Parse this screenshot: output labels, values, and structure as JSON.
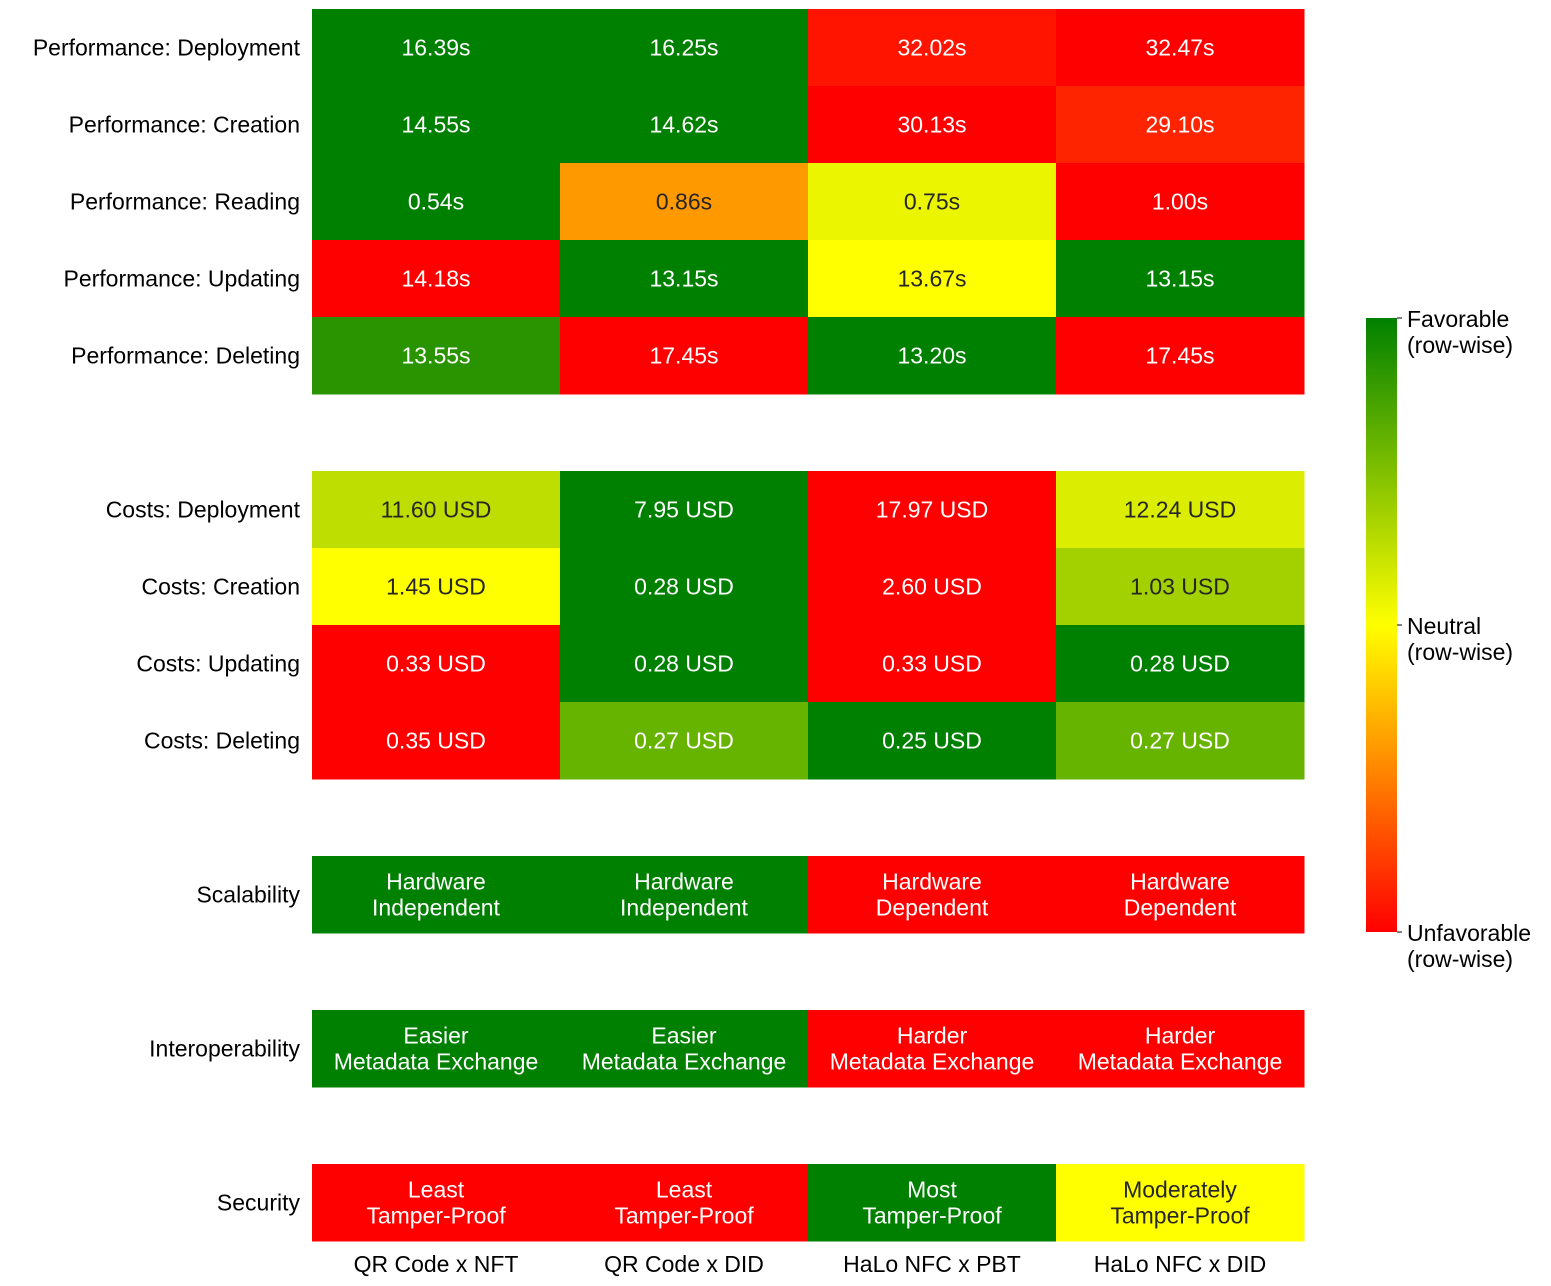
{
  "chart_data": {
    "type": "heatmap",
    "columns": [
      "QR Code x NFT",
      "QR Code x DID",
      "HaLo NFC x PBT",
      "HaLo NFC x DID"
    ],
    "rows": [
      {
        "label": "Performance: Deployment",
        "group": 0,
        "cells": [
          {
            "text": "16.39s",
            "score": 1.0
          },
          {
            "text": "16.25s",
            "score": 1.0
          },
          {
            "text": "32.02s",
            "score": 0.04
          },
          {
            "text": "32.47s",
            "score": 0.0
          }
        ]
      },
      {
        "label": "Performance: Creation",
        "group": 0,
        "cells": [
          {
            "text": "14.55s",
            "score": 1.0
          },
          {
            "text": "14.62s",
            "score": 1.0
          },
          {
            "text": "30.13s",
            "score": 0.0
          },
          {
            "text": "29.10s",
            "score": 0.07
          }
        ]
      },
      {
        "label": "Performance: Reading",
        "group": 0,
        "cells": [
          {
            "text": "0.54s",
            "score": 1.0
          },
          {
            "text": "0.86s",
            "score": 0.3
          },
          {
            "text": "0.75s",
            "score": 0.54
          },
          {
            "text": "1.00s",
            "score": 0.0
          }
        ]
      },
      {
        "label": "Performance: Updating",
        "group": 0,
        "cells": [
          {
            "text": "14.18s",
            "score": 0.0
          },
          {
            "text": "13.15s",
            "score": 1.0
          },
          {
            "text": "13.67s",
            "score": 0.5
          },
          {
            "text": "13.15s",
            "score": 1.0
          }
        ]
      },
      {
        "label": "Performance: Deleting",
        "group": 0,
        "cells": [
          {
            "text": "13.55s",
            "score": 0.92
          },
          {
            "text": "17.45s",
            "score": 0.0
          },
          {
            "text": "13.20s",
            "score": 1.0
          },
          {
            "text": "17.45s",
            "score": 0.0
          }
        ]
      },
      {
        "label": "Costs: Deployment",
        "group": 1,
        "cells": [
          {
            "text": "11.60 USD",
            "score": 0.63
          },
          {
            "text": "7.95 USD",
            "score": 1.0
          },
          {
            "text": "17.97 USD",
            "score": 0.0
          },
          {
            "text": "12.24 USD",
            "score": 0.57
          }
        ]
      },
      {
        "label": "Costs: Creation",
        "group": 1,
        "cells": [
          {
            "text": "1.45 USD",
            "score": 0.5
          },
          {
            "text": "0.28 USD",
            "score": 1.0
          },
          {
            "text": "2.60 USD",
            "score": 0.0
          },
          {
            "text": "1.03 USD",
            "score": 0.68
          }
        ]
      },
      {
        "label": "Costs: Updating",
        "group": 1,
        "cells": [
          {
            "text": "0.33 USD",
            "score": 0.0
          },
          {
            "text": "0.28 USD",
            "score": 1.0
          },
          {
            "text": "0.33 USD",
            "score": 0.0
          },
          {
            "text": "0.28 USD",
            "score": 1.0
          }
        ]
      },
      {
        "label": "Costs: Deleting",
        "group": 1,
        "cells": [
          {
            "text": "0.35 USD",
            "score": 0.0
          },
          {
            "text": "0.27 USD",
            "score": 0.8
          },
          {
            "text": "0.25 USD",
            "score": 1.0
          },
          {
            "text": "0.27 USD",
            "score": 0.8
          }
        ]
      },
      {
        "label": "Scalability",
        "group": 2,
        "cells": [
          {
            "text": "Hardware\nIndependent",
            "score": 1.0
          },
          {
            "text": "Hardware\nIndependent",
            "score": 1.0
          },
          {
            "text": "Hardware\nDependent",
            "score": 0.0
          },
          {
            "text": "Hardware\nDependent",
            "score": 0.0
          }
        ]
      },
      {
        "label": "Interoperability",
        "group": 3,
        "cells": [
          {
            "text": "Easier\nMetadata Exchange",
            "score": 1.0
          },
          {
            "text": "Easier\nMetadata Exchange",
            "score": 1.0
          },
          {
            "text": "Harder\nMetadata Exchange",
            "score": 0.0
          },
          {
            "text": "Harder\nMetadata Exchange",
            "score": 0.0
          }
        ]
      },
      {
        "label": "Security",
        "group": 4,
        "cells": [
          {
            "text": "Least\nTamper-Proof",
            "score": 0.0
          },
          {
            "text": "Least\nTamper-Proof",
            "score": 0.0
          },
          {
            "text": "Most\nTamper-Proof",
            "score": 1.0
          },
          {
            "text": "Moderately\nTamper-Proof",
            "score": 0.5
          }
        ]
      }
    ],
    "colorbar": {
      "ticks": [
        {
          "value": 1.0,
          "label": "Favorable\n(row-wise)"
        },
        {
          "value": 0.5,
          "label": "Neutral\n(row-wise)"
        },
        {
          "value": 0.0,
          "label": "Unfavorable\n(row-wise)"
        }
      ],
      "colors": {
        "unfavorable": "#ff0000",
        "neutral": "#ffff00",
        "favorable": "#008000"
      }
    },
    "score_range": [
      0,
      1
    ]
  }
}
